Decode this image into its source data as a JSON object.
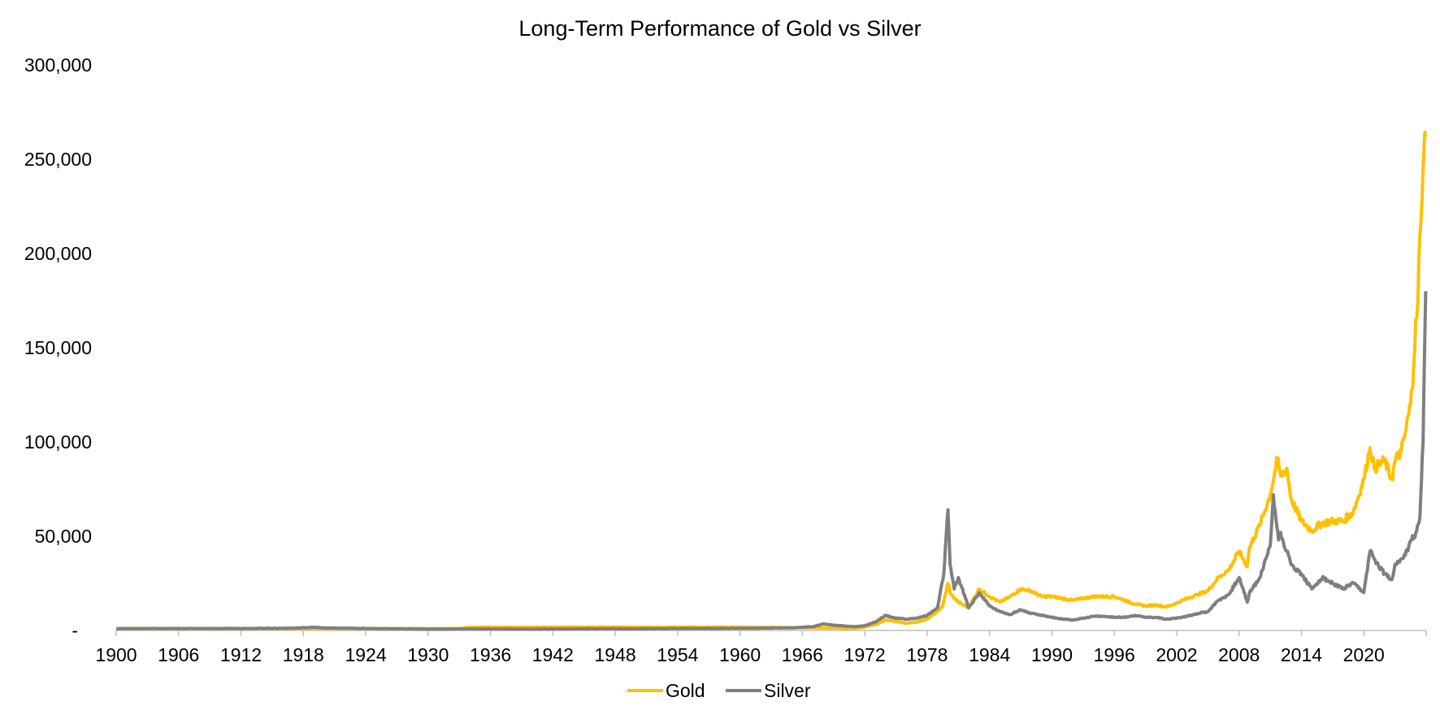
{
  "chart_data": {
    "type": "line",
    "title": "Long-Term Performance of Gold vs Silver",
    "xlabel": "",
    "ylabel": "",
    "xlim": [
      1900,
      2025
    ],
    "ylim": [
      0,
      300000
    ],
    "yticks": [
      {
        "value": 0,
        "label": "-"
      },
      {
        "value": 50000,
        "label": "50,000"
      },
      {
        "value": 100000,
        "label": "100,000"
      },
      {
        "value": 150000,
        "label": "150,000"
      },
      {
        "value": 200000,
        "label": "200,000"
      },
      {
        "value": 250000,
        "label": "250,000"
      },
      {
        "value": 300000,
        "label": "300,000"
      }
    ],
    "xticks": [
      "1900",
      "1906",
      "1912",
      "1918",
      "1924",
      "1930",
      "1936",
      "1942",
      "1948",
      "1954",
      "1960",
      "1966",
      "1972",
      "1978",
      "1984",
      "1990",
      "1996",
      "2002",
      "2008",
      "2014",
      "2020"
    ],
    "grid": false,
    "legend": "bottom",
    "series": [
      {
        "name": "Gold",
        "color": "#FFC000",
        "points": [
          [
            1900,
            1000
          ],
          [
            1910,
            1000
          ],
          [
            1920,
            1000
          ],
          [
            1933,
            1000
          ],
          [
            1934,
            1700
          ],
          [
            1940,
            1700
          ],
          [
            1946,
            1800
          ],
          [
            1950,
            1700
          ],
          [
            1960,
            1700
          ],
          [
            1968,
            1400
          ],
          [
            1970,
            1100
          ],
          [
            1971,
            1200
          ],
          [
            1972,
            1800
          ],
          [
            1973,
            3000
          ],
          [
            1974,
            5500
          ],
          [
            1975,
            4800
          ],
          [
            1976,
            3800
          ],
          [
            1977,
            4500
          ],
          [
            1978,
            6000
          ],
          [
            1979,
            10000
          ],
          [
            1979.5,
            13000
          ],
          [
            1980.0,
            25000
          ],
          [
            1980.3,
            19000
          ],
          [
            1981,
            15000
          ],
          [
            1982,
            12000
          ],
          [
            1983,
            22000
          ],
          [
            1984,
            18000
          ],
          [
            1985,
            15000
          ],
          [
            1986,
            18000
          ],
          [
            1987,
            22000
          ],
          [
            1988,
            21000
          ],
          [
            1989,
            18000
          ],
          [
            1990,
            18000
          ],
          [
            1991,
            17000
          ],
          [
            1992,
            16000
          ],
          [
            1993,
            17000
          ],
          [
            1994,
            18000
          ],
          [
            1995,
            18000
          ],
          [
            1996,
            18000
          ],
          [
            1997,
            16000
          ],
          [
            1998,
            14000
          ],
          [
            1999,
            13000
          ],
          [
            2000,
            13500
          ],
          [
            2001,
            12500
          ],
          [
            2002,
            14500
          ],
          [
            2003,
            17000
          ],
          [
            2004,
            19000
          ],
          [
            2005,
            21000
          ],
          [
            2006,
            28000
          ],
          [
            2007,
            32000
          ],
          [
            2008,
            42000
          ],
          [
            2008.8,
            34000
          ],
          [
            2009,
            44000
          ],
          [
            2010,
            56000
          ],
          [
            2011,
            72000
          ],
          [
            2011.7,
            91000
          ],
          [
            2012,
            82000
          ],
          [
            2012.6,
            86000
          ],
          [
            2013,
            70000
          ],
          [
            2014,
            58000
          ],
          [
            2015,
            53000
          ],
          [
            2016,
            57000
          ],
          [
            2017,
            58000
          ],
          [
            2018,
            58000
          ],
          [
            2019,
            63000
          ],
          [
            2020,
            80000
          ],
          [
            2020.6,
            97000
          ],
          [
            2021,
            86000
          ],
          [
            2022,
            90000
          ],
          [
            2022.7,
            80000
          ],
          [
            2023,
            90000
          ],
          [
            2023.6,
            95000
          ],
          [
            2024,
            105000
          ],
          [
            2024.5,
            120000
          ],
          [
            2024.8,
            140000
          ],
          [
            2025.0,
            165000
          ],
          [
            2025.2,
            175000
          ],
          [
            2025.4,
            210000
          ],
          [
            2025.6,
            228000
          ],
          [
            2025.8,
            256000
          ],
          [
            2025.95,
            262000
          ]
        ]
      },
      {
        "name": "Silver",
        "color": "#7F7F7F",
        "points": [
          [
            1900,
            1000
          ],
          [
            1910,
            1000
          ],
          [
            1917,
            1200
          ],
          [
            1919,
            1700
          ],
          [
            1920,
            1300
          ],
          [
            1925,
            1000
          ],
          [
            1930,
            700
          ],
          [
            1935,
            800
          ],
          [
            1940,
            700
          ],
          [
            1945,
            900
          ],
          [
            1950,
            900
          ],
          [
            1955,
            1000
          ],
          [
            1960,
            1100
          ],
          [
            1965,
            1400
          ],
          [
            1967,
            2000
          ],
          [
            1968,
            3500
          ],
          [
            1969,
            2800
          ],
          [
            1970,
            2400
          ],
          [
            1971,
            2000
          ],
          [
            1972,
            2500
          ],
          [
            1973,
            4500
          ],
          [
            1974,
            8000
          ],
          [
            1975,
            6500
          ],
          [
            1976,
            6000
          ],
          [
            1977,
            6500
          ],
          [
            1978,
            8000
          ],
          [
            1979,
            12000
          ],
          [
            1979.6,
            30000
          ],
          [
            1980.0,
            64000
          ],
          [
            1980.2,
            35000
          ],
          [
            1980.6,
            22000
          ],
          [
            1981,
            28000
          ],
          [
            1982,
            12000
          ],
          [
            1983,
            20000
          ],
          [
            1984,
            13000
          ],
          [
            1985,
            10000
          ],
          [
            1986,
            8500
          ],
          [
            1987,
            11000
          ],
          [
            1988,
            9000
          ],
          [
            1989,
            8000
          ],
          [
            1990,
            7000
          ],
          [
            1991,
            6000
          ],
          [
            1992,
            5500
          ],
          [
            1993,
            6500
          ],
          [
            1994,
            7500
          ],
          [
            1995,
            7500
          ],
          [
            1996,
            7000
          ],
          [
            1997,
            7000
          ],
          [
            1998,
            8000
          ],
          [
            1999,
            7000
          ],
          [
            2000,
            7000
          ],
          [
            2001,
            6000
          ],
          [
            2002,
            6500
          ],
          [
            2003,
            7500
          ],
          [
            2004,
            9000
          ],
          [
            2005,
            10000
          ],
          [
            2006,
            16000
          ],
          [
            2007,
            19000
          ],
          [
            2008,
            28000
          ],
          [
            2008.8,
            15000
          ],
          [
            2009,
            20000
          ],
          [
            2010,
            28000
          ],
          [
            2011,
            45000
          ],
          [
            2011.3,
            72000
          ],
          [
            2011.8,
            48000
          ],
          [
            2012,
            52000
          ],
          [
            2013,
            35000
          ],
          [
            2014,
            30000
          ],
          [
            2015,
            22000
          ],
          [
            2016,
            28000
          ],
          [
            2017,
            25000
          ],
          [
            2018,
            22000
          ],
          [
            2019,
            25000
          ],
          [
            2020,
            20000
          ],
          [
            2020.6,
            42000
          ],
          [
            2021,
            38000
          ],
          [
            2022,
            30000
          ],
          [
            2022.7,
            27000
          ],
          [
            2023,
            35000
          ],
          [
            2023.6,
            38000
          ],
          [
            2024,
            40000
          ],
          [
            2024.6,
            48000
          ],
          [
            2025,
            52000
          ],
          [
            2025.4,
            60000
          ],
          [
            2025.7,
            100000
          ],
          [
            2025.85,
            150000
          ],
          [
            2025.95,
            180000
          ]
        ]
      }
    ]
  }
}
